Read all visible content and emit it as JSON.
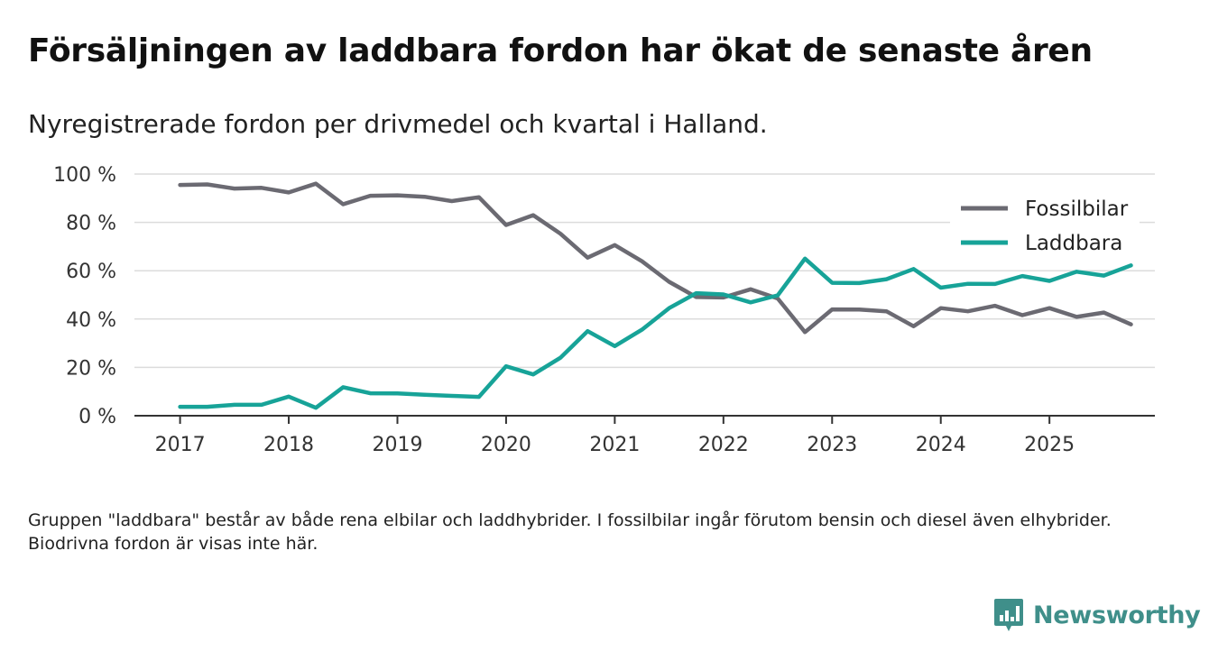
{
  "header": {
    "title": "Försäljningen av laddbara fordon har ökat de senaste åren",
    "subtitle": "Nyregistrerade fordon per drivmedel och kvartal i Halland."
  },
  "footnote": "Gruppen \"laddbara\" består av både rena elbilar och laddhybrider. I fossilbilar ingår förutom bensin och diesel även elhybrider. Biodrivna fordon är visas inte här.",
  "brand": {
    "name": "Newsworthy",
    "color": "#3f8f8a"
  },
  "chart_data": {
    "type": "line",
    "title": "Försäljningen av laddbara fordon har ökat de senaste åren",
    "subtitle": "Nyregistrerade fordon per drivmedel och kvartal i Halland.",
    "xlabel": "",
    "ylabel": "",
    "x": [
      2017.0,
      2017.25,
      2017.5,
      2017.75,
      2018.0,
      2018.25,
      2018.5,
      2018.75,
      2019.0,
      2019.25,
      2019.5,
      2019.75,
      2020.0,
      2020.25,
      2020.5,
      2020.75,
      2021.0,
      2021.25,
      2021.5,
      2021.75,
      2022.0,
      2022.25,
      2022.5,
      2022.75,
      2023.0,
      2023.25,
      2023.5,
      2023.75,
      2024.0,
      2024.25,
      2024.5,
      2024.75,
      2025.0,
      2025.25,
      2025.5,
      2025.75
    ],
    "xticks": [
      2017,
      2018,
      2019,
      2020,
      2021,
      2022,
      2023,
      2024,
      2025
    ],
    "xtick_labels": [
      "2017",
      "2018",
      "2019",
      "2020",
      "2021",
      "2022",
      "2023",
      "2024",
      "2025"
    ],
    "xlim": [
      2016.58,
      2025.97
    ],
    "ylim": [
      0,
      100
    ],
    "yticks": [
      0,
      20,
      40,
      60,
      80,
      100
    ],
    "ytick_labels": [
      "0 %",
      "20 %",
      "40 %",
      "60 %",
      "80 %",
      "100 %"
    ],
    "grid": true,
    "legend_position": "top-right",
    "series": [
      {
        "name": "Fossilbilar",
        "color": "#6b6a72",
        "values": [
          95.5,
          95.7,
          94.0,
          94.3,
          92.4,
          96.0,
          87.5,
          91.0,
          91.2,
          90.6,
          88.8,
          90.4,
          78.9,
          83.0,
          75.3,
          65.4,
          70.6,
          63.9,
          55.4,
          49.1,
          48.9,
          52.3,
          48.5,
          34.6,
          44.0,
          43.9,
          43.2,
          37.0,
          44.5,
          43.2,
          45.5,
          41.6,
          44.5,
          40.9,
          42.7,
          37.8
        ]
      },
      {
        "name": "Laddbara",
        "color": "#17a398",
        "values": [
          3.7,
          3.7,
          4.5,
          4.5,
          7.9,
          3.3,
          11.8,
          9.3,
          9.2,
          8.7,
          8.2,
          7.8,
          20.5,
          17.1,
          24.0,
          35.0,
          28.8,
          35.6,
          44.5,
          50.7,
          50.2,
          46.9,
          49.8,
          65.0,
          55.0,
          54.9,
          56.5,
          60.7,
          53.0,
          54.6,
          54.5,
          57.8,
          55.8,
          59.6,
          58.0,
          62.2
        ]
      }
    ]
  }
}
